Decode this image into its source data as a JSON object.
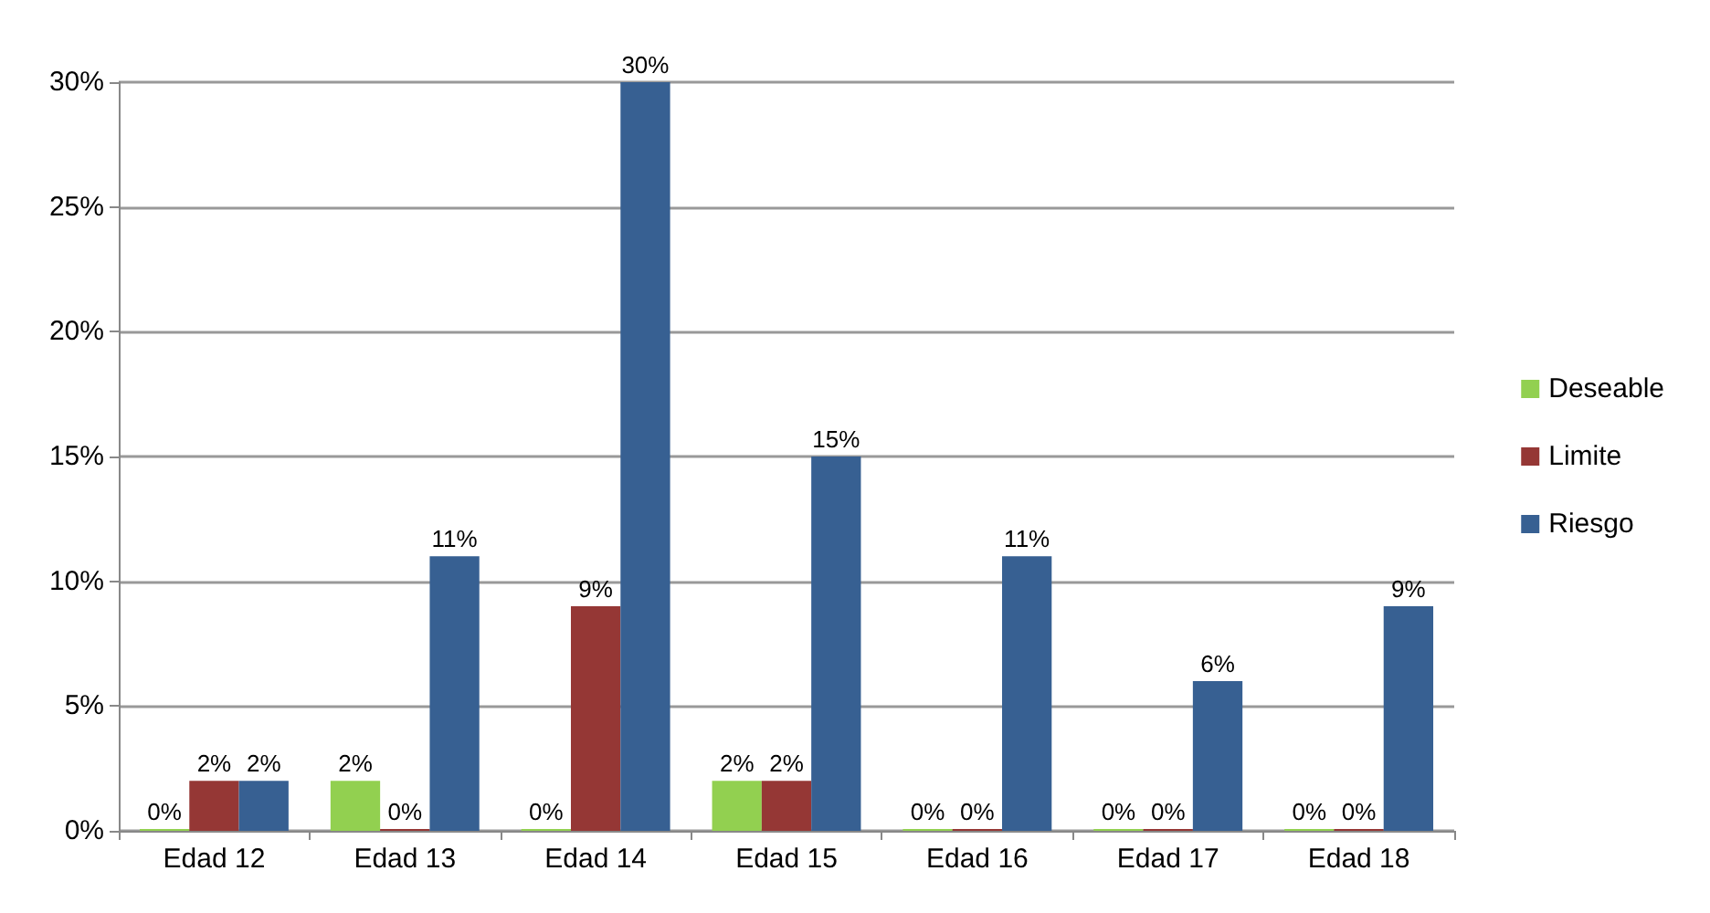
{
  "chart_data": {
    "type": "bar",
    "categories": [
      "Edad 12",
      "Edad 13",
      "Edad 14",
      "Edad 15",
      "Edad 16",
      "Edad 17",
      "Edad 18"
    ],
    "series": [
      {
        "name": "Deseable",
        "color": "#92d050",
        "values": [
          0,
          2,
          0,
          2,
          0,
          0,
          0
        ],
        "value_labels": [
          "0%",
          "2%",
          "0%",
          "2%",
          "0%",
          "0%",
          "0%"
        ]
      },
      {
        "name": "Limite",
        "color": "#953735",
        "values": [
          2,
          0,
          9,
          2,
          0,
          0,
          0
        ],
        "value_labels": [
          "2%",
          "0%",
          "9%",
          "2%",
          "0%",
          "0%",
          "0%"
        ]
      },
      {
        "name": "Riesgo",
        "color": "#376092",
        "values": [
          2,
          11,
          30,
          15,
          11,
          6,
          9
        ],
        "value_labels": [
          "2%",
          "11%",
          "30%",
          "15%",
          "11%",
          "6%",
          "9%"
        ]
      }
    ],
    "ylim": [
      0,
      30
    ],
    "yticks": [
      {
        "value": 0,
        "label": "0%"
      },
      {
        "value": 5,
        "label": "5%"
      },
      {
        "value": 10,
        "label": "10%"
      },
      {
        "value": 15,
        "label": "15%"
      },
      {
        "value": 20,
        "label": "20%"
      },
      {
        "value": 25,
        "label": "25%"
      },
      {
        "value": 30,
        "label": "30%"
      }
    ],
    "grid": "y",
    "legend": "right"
  }
}
